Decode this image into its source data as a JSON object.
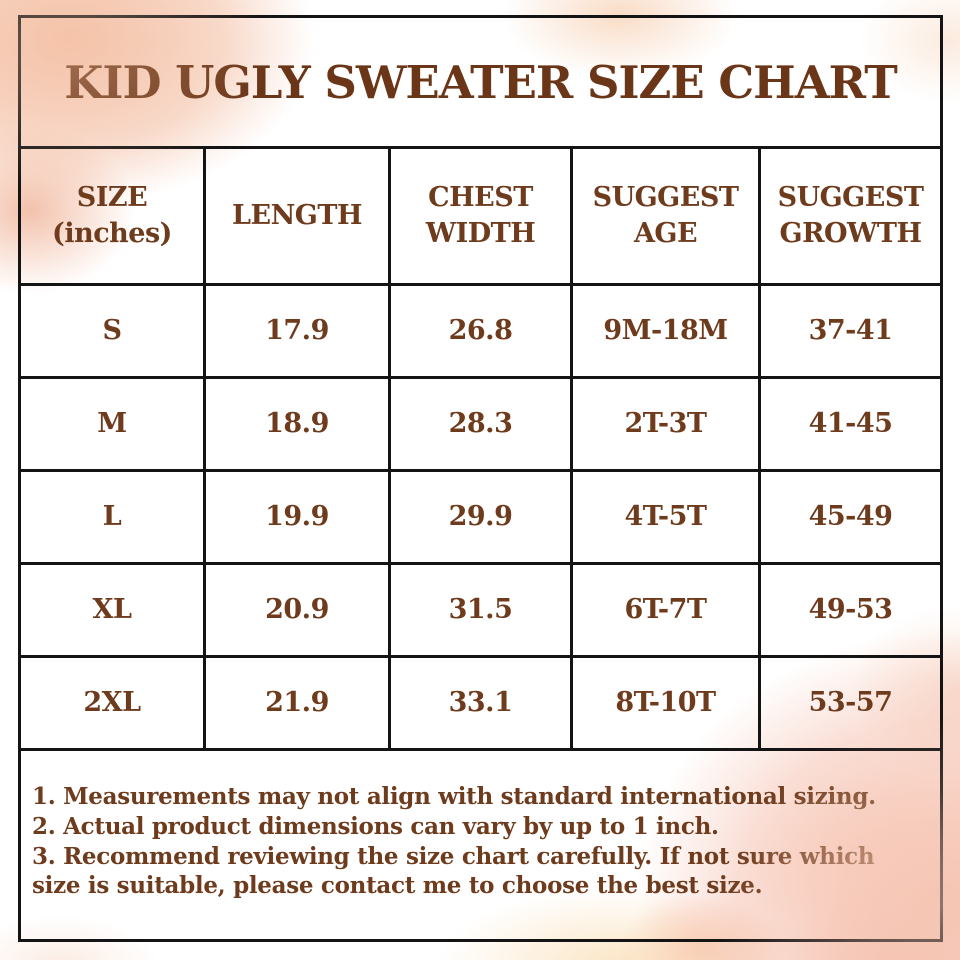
{
  "title": "KID UGLY SWEATER SIZE CHART",
  "colors": {
    "text_brown": "#6e3b1d",
    "border_black": "#141414",
    "watercolor_peach": "#f3bda2",
    "watercolor_pink": "#f5beac",
    "watercolor_warm_yellow": "#fadDb2"
  },
  "chart_data": {
    "type": "table",
    "title": "KID UGLY SWEATER SIZE CHART",
    "columns": [
      "SIZE\n(inches)",
      "LENGTH",
      "CHEST\nWIDTH",
      "SUGGEST\nAGE",
      "SUGGEST\nGROWTH"
    ],
    "rows": [
      {
        "size": "S",
        "length": "17.9",
        "chest_width": "26.8",
        "suggest_age": "9M-18M",
        "suggest_growth": "37-41"
      },
      {
        "size": "M",
        "length": "18.9",
        "chest_width": "28.3",
        "suggest_age": "2T-3T",
        "suggest_growth": "41-45"
      },
      {
        "size": "L",
        "length": "19.9",
        "chest_width": "29.9",
        "suggest_age": "4T-5T",
        "suggest_growth": "45-49"
      },
      {
        "size": "XL",
        "length": "20.9",
        "chest_width": "31.5",
        "suggest_age": "6T-7T",
        "suggest_growth": "49-53"
      },
      {
        "size": "2XL",
        "length": "21.9",
        "chest_width": "33.1",
        "suggest_age": "8T-10T",
        "suggest_growth": "53-57"
      }
    ]
  },
  "notes": [
    "1. Measurements may not align with standard international sizing.",
    "2. Actual product dimensions can vary by up to 1 inch.",
    "3. Recommend reviewing the size chart carefully. If not sure which size is suitable, please contact me to choose the best size."
  ]
}
